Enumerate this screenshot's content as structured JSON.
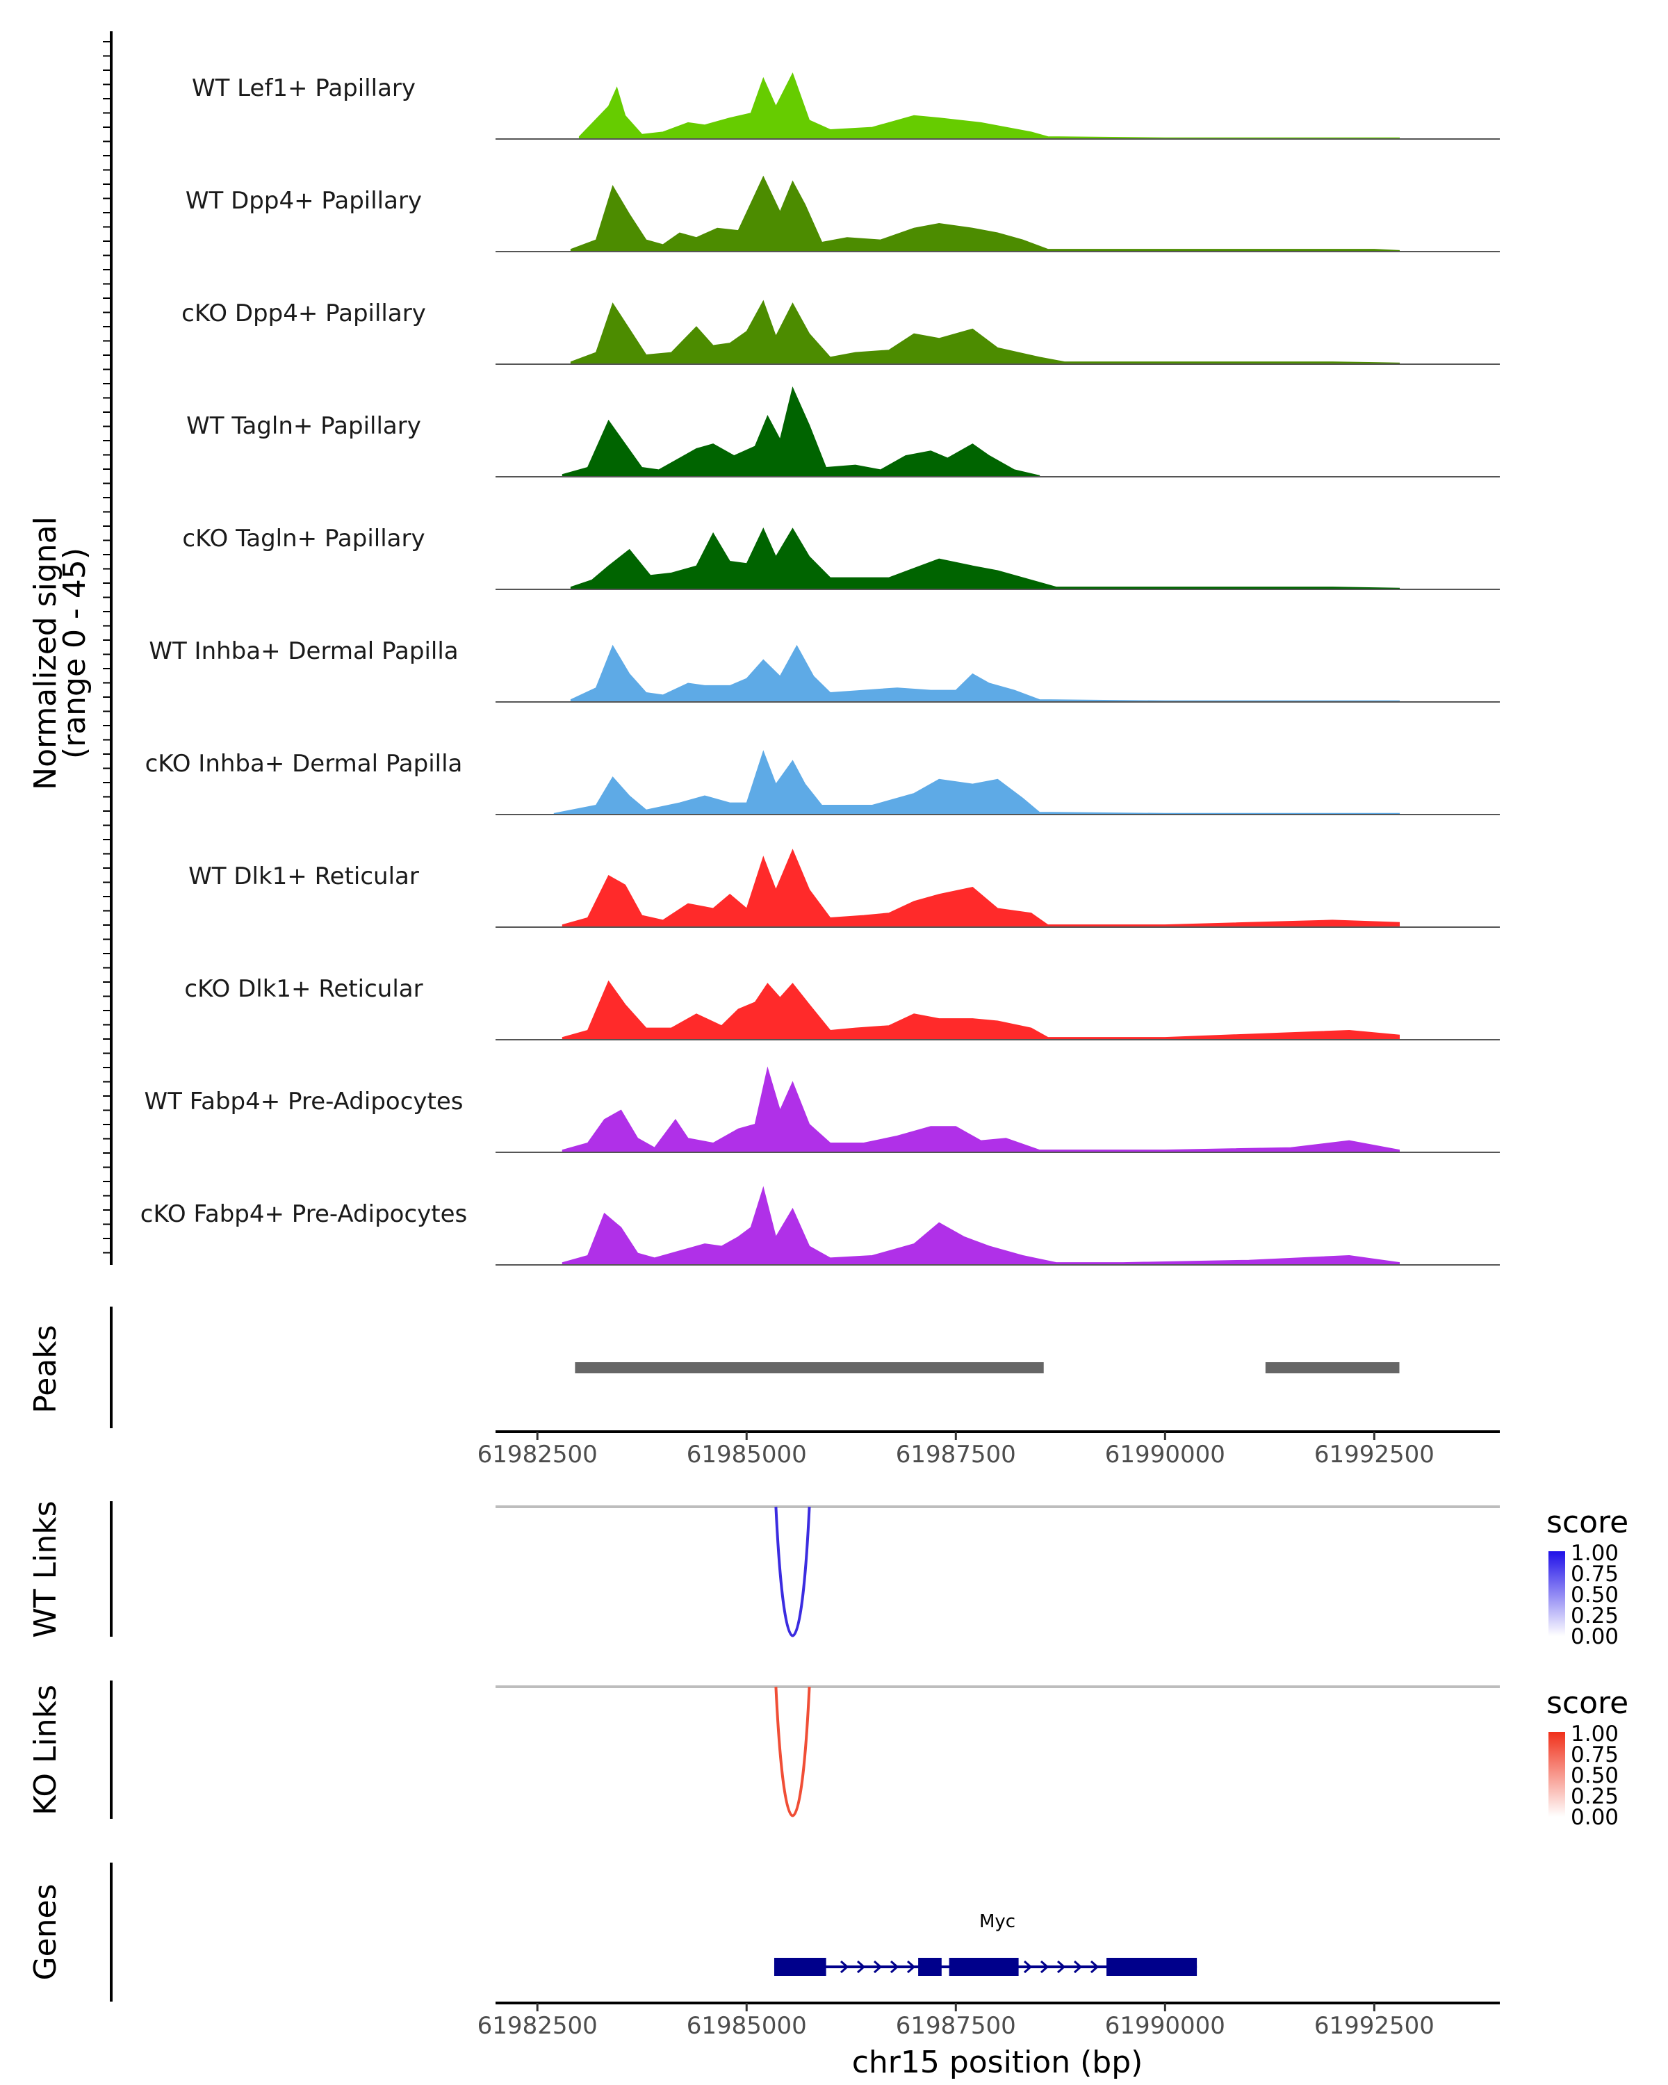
{
  "chart_data": {
    "type": "area",
    "title": "",
    "ylabel_line1": "Normalized signal",
    "ylabel_line2": "(range 0 - 45)",
    "xlabel": "chr15 position (bp)",
    "xlim": [
      61982000,
      61994000
    ],
    "ylim": [
      0,
      45
    ],
    "x_ticks": [
      61982500,
      61985000,
      61987500,
      61990000,
      61992500
    ],
    "x_tick_labels": [
      "61982500",
      "61985000",
      "61987500",
      "61990000",
      "61992500"
    ],
    "region_label_peaks": "Peaks",
    "region_label_wt_links": "WT Links",
    "region_label_ko_links": "KO Links",
    "region_label_genes": "Genes",
    "series": [
      {
        "name": "WT Lef1+ Papillary",
        "color": "#66cc00",
        "x": [
          61983000,
          61983350,
          61983450,
          61983550,
          61983750,
          61984000,
          61984300,
          61984500,
          61984800,
          61985050,
          61985200,
          61985350,
          61985550,
          61985750,
          61986000,
          61986500,
          61987000,
          61987300,
          61987800,
          61988400,
          61988600,
          61990000,
          61992800
        ],
        "values": [
          1,
          14,
          22,
          10,
          2,
          3,
          7,
          6,
          9,
          11,
          26,
          14,
          28,
          8,
          4,
          5,
          10,
          9,
          7,
          3,
          1,
          0.5,
          0.5
        ]
      },
      {
        "name": "WT Dpp4+ Papillary",
        "color": "#4c8c00",
        "x": [
          61982900,
          61983200,
          61983400,
          61983600,
          61983800,
          61984000,
          61984200,
          61984400,
          61984650,
          61984900,
          61985200,
          61985400,
          61985550,
          61985700,
          61985900,
          61986200,
          61986600,
          61987000,
          61987300,
          61987700,
          61988000,
          61988300,
          61988600,
          61989500,
          61991000,
          61992500,
          61992800
        ],
        "values": [
          1,
          5,
          28,
          16,
          5,
          3,
          8,
          6,
          10,
          9,
          32,
          17,
          30,
          20,
          4,
          6,
          5,
          10,
          12,
          10,
          8,
          5,
          1,
          1,
          1,
          1,
          0.5
        ]
      },
      {
        "name": "cKO Dpp4+ Papillary",
        "color": "#4c8c00",
        "x": [
          61982900,
          61983200,
          61983400,
          61983600,
          61983800,
          61984100,
          61984400,
          61984600,
          61984800,
          61985000,
          61985200,
          61985350,
          61985550,
          61985750,
          61986000,
          61986300,
          61986700,
          61987000,
          61987300,
          61987700,
          61988000,
          61988500,
          61988800,
          61990000,
          61992000,
          61992800
        ],
        "values": [
          1,
          5,
          26,
          15,
          4,
          5,
          16,
          8,
          9,
          14,
          27,
          12,
          26,
          13,
          3,
          5,
          6,
          13,
          11,
          15,
          7,
          3,
          1,
          1,
          1,
          0.5
        ]
      },
      {
        "name": "WT Tagln+ Papillary",
        "color": "#006400",
        "x": [
          61982800,
          61983100,
          61983350,
          61983550,
          61983750,
          61983950,
          61984200,
          61984400,
          61984600,
          61984850,
          61985100,
          61985250,
          61985400,
          61985550,
          61985750,
          61985950,
          61986300,
          61986600,
          61986900,
          61987200,
          61987400,
          61987700,
          61987900,
          61988200,
          61988500
        ],
        "values": [
          1,
          4,
          24,
          14,
          4,
          3,
          8,
          12,
          14,
          9,
          13,
          26,
          16,
          38,
          22,
          4,
          5,
          3,
          9,
          11,
          8,
          14,
          9,
          3,
          0.5
        ]
      },
      {
        "name": "cKO Tagln+ Papillary",
        "color": "#006400",
        "x": [
          61982900,
          61983150,
          61983350,
          61983600,
          61983850,
          61984100,
          61984400,
          61984600,
          61984800,
          61985000,
          61985200,
          61985350,
          61985550,
          61985750,
          61986000,
          61986300,
          61986700,
          61987000,
          61987300,
          61987700,
          61988000,
          61988400,
          61988700,
          61990000,
          61992000,
          61992800
        ],
        "values": [
          1,
          4,
          10,
          17,
          6,
          7,
          10,
          24,
          12,
          11,
          26,
          14,
          26,
          14,
          5,
          5,
          5,
          9,
          13,
          10,
          8,
          4,
          1,
          1,
          1,
          0.5
        ]
      },
      {
        "name": "WT Inhba+ Dermal Papilla",
        "color": "#5eaae6",
        "x": [
          61982900,
          61983200,
          61983400,
          61983600,
          61983800,
          61984000,
          61984300,
          61984500,
          61984800,
          61985000,
          61985200,
          61985400,
          61985600,
          61985800,
          61986000,
          61986400,
          61986800,
          61987200,
          61987500,
          61987700,
          61987900,
          61988200,
          61988500,
          61990000,
          61992800
        ],
        "values": [
          1,
          6,
          24,
          12,
          4,
          3,
          8,
          7,
          7,
          10,
          18,
          11,
          24,
          11,
          4,
          5,
          6,
          5,
          5,
          12,
          8,
          5,
          1,
          0.5,
          0.5
        ]
      },
      {
        "name": "cKO Inhba+ Dermal Papilla",
        "color": "#5eaae6",
        "x": [
          61982700,
          61983200,
          61983400,
          61983600,
          61983800,
          61984200,
          61984500,
          61984800,
          61985000,
          61985200,
          61985350,
          61985550,
          61985700,
          61985900,
          61986500,
          61987000,
          61987300,
          61987700,
          61988000,
          61988300,
          61988500,
          61990000,
          61992800
        ],
        "values": [
          0.5,
          4,
          16,
          8,
          2,
          5,
          8,
          5,
          5,
          27,
          13,
          23,
          13,
          4,
          4,
          9,
          15,
          13,
          15,
          7,
          1,
          0.5,
          0.5
        ]
      },
      {
        "name": "WT Dlk1+ Reticular",
        "color": "#ff2a2a",
        "x": [
          61982800,
          61983100,
          61983350,
          61983550,
          61983750,
          61984000,
          61984300,
          61984600,
          61984800,
          61985000,
          61985200,
          61985350,
          61985550,
          61985750,
          61986000,
          61986400,
          61986700,
          61987000,
          61987300,
          61987700,
          61988000,
          61988400,
          61988600,
          61990000,
          61992000,
          61992800
        ],
        "values": [
          1,
          4,
          22,
          18,
          5,
          3,
          10,
          8,
          14,
          8,
          30,
          16,
          33,
          16,
          4,
          5,
          6,
          11,
          14,
          17,
          8,
          6,
          1,
          1,
          3,
          2
        ]
      },
      {
        "name": "cKO Dlk1+ Reticular",
        "color": "#ff2a2a",
        "x": [
          61982800,
          61983100,
          61983350,
          61983550,
          61983800,
          61984100,
          61984400,
          61984700,
          61984900,
          61985100,
          61985250,
          61985400,
          61985550,
          61985750,
          61986000,
          61986300,
          61986700,
          61987000,
          61987300,
          61987700,
          61988000,
          61988400,
          61988600,
          61990000,
          61992200,
          61992800
        ],
        "values": [
          1,
          4,
          25,
          15,
          5,
          5,
          11,
          6,
          13,
          16,
          24,
          18,
          24,
          15,
          4,
          5,
          6,
          11,
          9,
          9,
          8,
          5,
          1,
          1,
          4,
          2
        ]
      },
      {
        "name": "WT Fabp4+ Pre-Adipocytes",
        "color": "#b030e8",
        "x": [
          61982800,
          61983100,
          61983300,
          61983500,
          61983700,
          61983900,
          61984150,
          61984300,
          61984600,
          61984900,
          61985100,
          61985250,
          61985400,
          61985550,
          61985750,
          61986000,
          61986400,
          61986800,
          61987200,
          61987500,
          61987800,
          61988100,
          61988500,
          61989000,
          61990000,
          61991500,
          61992200,
          61992800
        ],
        "values": [
          1,
          4,
          14,
          18,
          6,
          2,
          14,
          6,
          4,
          10,
          12,
          36,
          18,
          30,
          12,
          4,
          4,
          7,
          11,
          11,
          5,
          6,
          1,
          1,
          1,
          2,
          5,
          1
        ]
      },
      {
        "name": "cKO Fabp4+ Pre-Adipocytes",
        "color": "#b030e8",
        "x": [
          61982800,
          61983100,
          61983300,
          61983500,
          61983700,
          61983900,
          61984200,
          61984500,
          61984700,
          61984900,
          61985050,
          61985200,
          61985350,
          61985550,
          61985750,
          61986000,
          61986500,
          61987000,
          61987300,
          61987600,
          61987900,
          61988300,
          61988700,
          61989500,
          61991000,
          61992200,
          61992800
        ],
        "values": [
          1,
          4,
          22,
          16,
          5,
          3,
          6,
          9,
          8,
          12,
          16,
          33,
          12,
          24,
          8,
          3,
          4,
          9,
          18,
          12,
          8,
          4,
          1,
          1,
          2,
          4,
          1
        ]
      }
    ],
    "peaks": [
      {
        "start": 61982950,
        "end": 61988550
      },
      {
        "start": 61991200,
        "end": 61992800
      }
    ],
    "wt_links": {
      "start": 61985350,
      "end": 61985750,
      "score": 1.0,
      "color": "#3b2ce0"
    },
    "ko_links": {
      "start": 61985350,
      "end": 61985750,
      "score": 1.0,
      "color": "#f04e36"
    },
    "legend_wt": {
      "title": "score",
      "ticks": [
        "1.00",
        "0.75",
        "0.50",
        "0.25",
        "0.00"
      ],
      "low": "#ffffff",
      "high": "#1f10e8"
    },
    "legend_ko": {
      "title": "score",
      "ticks": [
        "1.00",
        "0.75",
        "0.50",
        "0.25",
        "0.00"
      ],
      "low": "#ffffff",
      "high": "#f0301a"
    },
    "gene": {
      "name": "Myc",
      "color": "#00008b",
      "strand": "+",
      "start": 61985330,
      "end": 61990380,
      "exons": [
        {
          "start": 61985330,
          "end": 61985950
        },
        {
          "start": 61987050,
          "end": 61987330
        },
        {
          "start": 61987420,
          "end": 61988250
        },
        {
          "start": 61989300,
          "end": 61990380
        }
      ]
    }
  }
}
